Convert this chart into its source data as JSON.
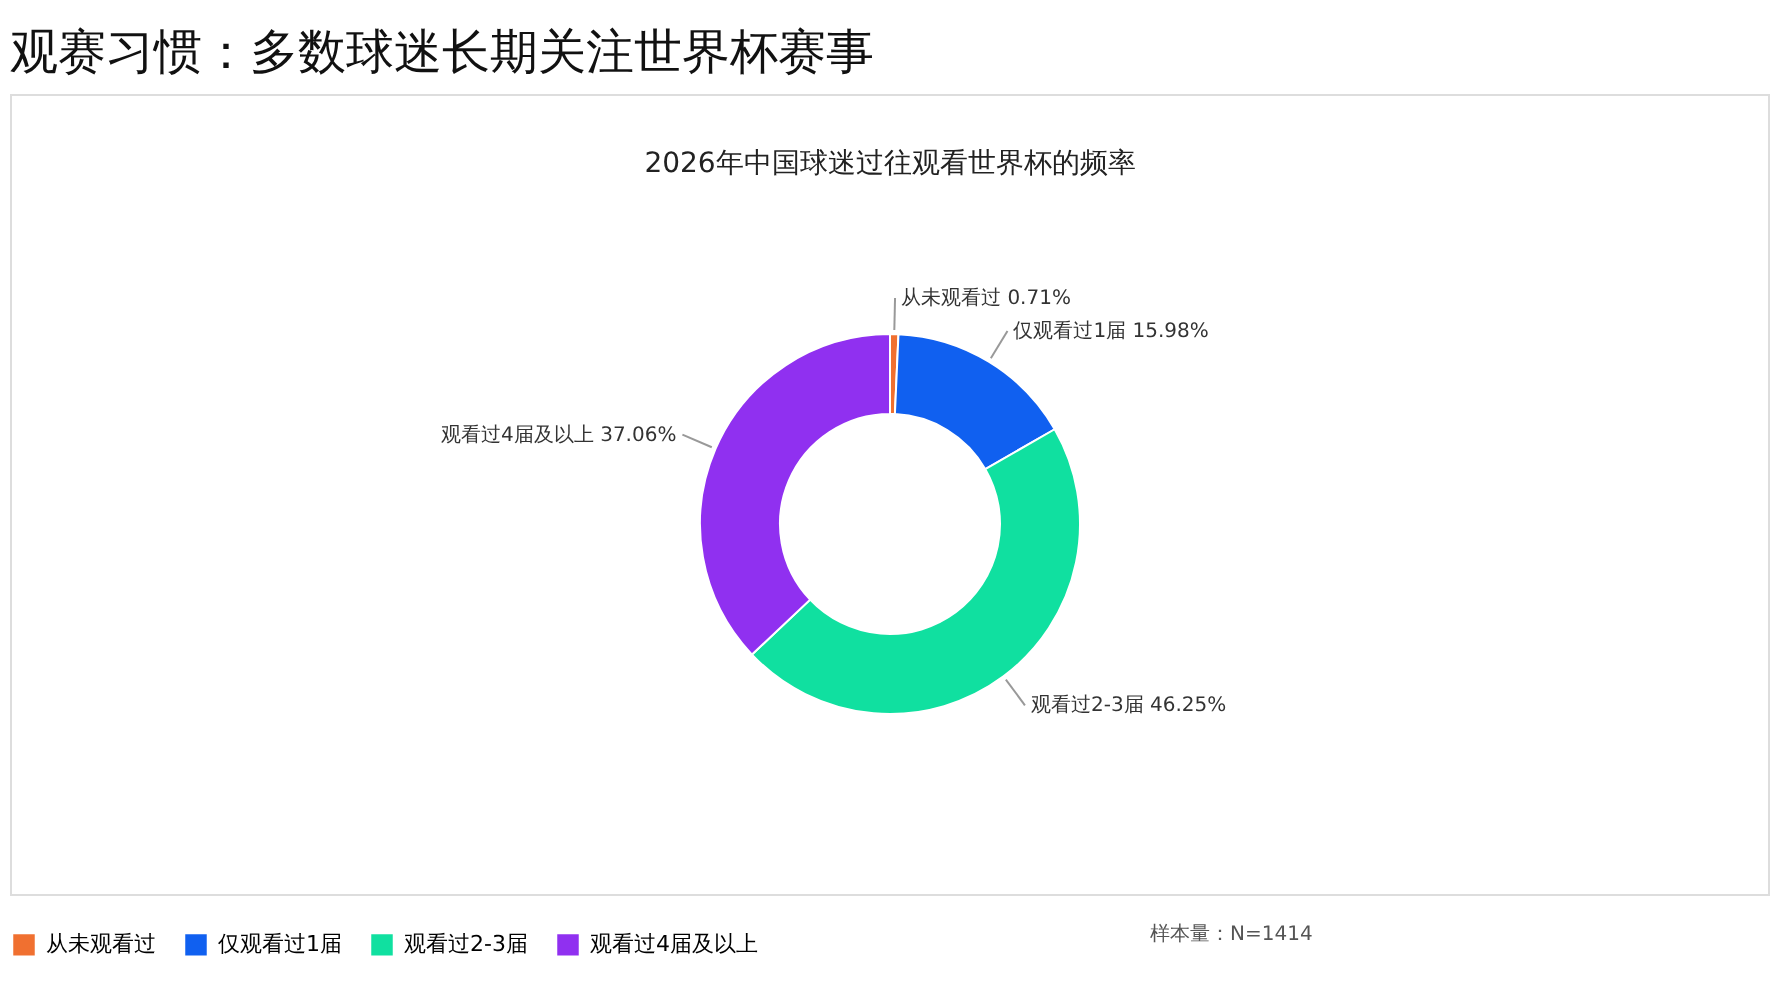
{
  "chart_data": {
    "type": "donut",
    "title": "观赛习惯：多数球迷长期关注世界杯赛事",
    "subtitle": "2026年中国球迷过往观看世界杯的频率",
    "categories": [
      "从未观看过",
      "仅观看过1届",
      "观看过2-3届",
      "观看过4届及以上"
    ],
    "values": [
      0.71,
      15.98,
      46.25,
      37.06
    ],
    "colors": [
      "#f07030",
      "#1060f0",
      "#10e0a0",
      "#9030f0"
    ],
    "value_labels": [
      "从未观看过 0.71%",
      "仅观看过1届 15.98%",
      "观看过2-3届 46.25%",
      "观看过4届及以上 37.06%"
    ],
    "legend": "bottom",
    "annotations": [
      "样本量：N=1414"
    ]
  }
}
